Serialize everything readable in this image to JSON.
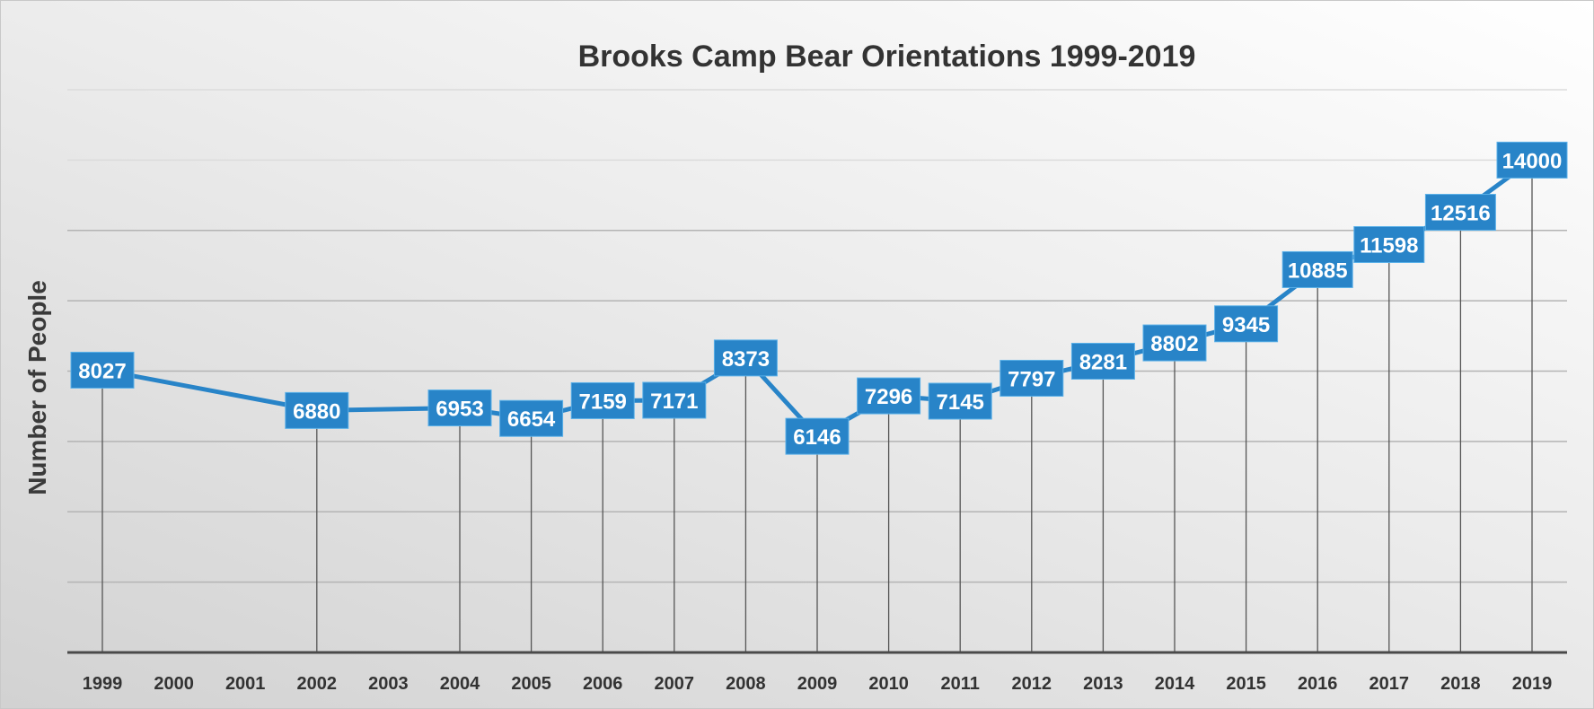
{
  "chart_data": {
    "type": "line",
    "title": "Brooks Camp Bear Orientations 1999-2019",
    "xlabel": "",
    "ylabel": "Number of People",
    "categories": [
      "1999",
      "2000",
      "2001",
      "2002",
      "2003",
      "2004",
      "2005",
      "2006",
      "2007",
      "2008",
      "2009",
      "2010",
      "2011",
      "2012",
      "2013",
      "2014",
      "2015",
      "2016",
      "2017",
      "2018",
      "2019"
    ],
    "series": [
      {
        "name": "Number of People",
        "values": [
          8027,
          null,
          null,
          6880,
          null,
          6953,
          6654,
          7159,
          7171,
          8373,
          6146,
          7296,
          7145,
          7797,
          8281,
          8802,
          9345,
          10885,
          11598,
          12516,
          14000
        ]
      }
    ],
    "ylim": [
      0,
      16000
    ],
    "gridlines": true,
    "y_tick_labels_visible": false,
    "data_labels": true,
    "drop_lines": true,
    "line_color": "#2884c8",
    "label_bg_color": "#2884c8"
  }
}
